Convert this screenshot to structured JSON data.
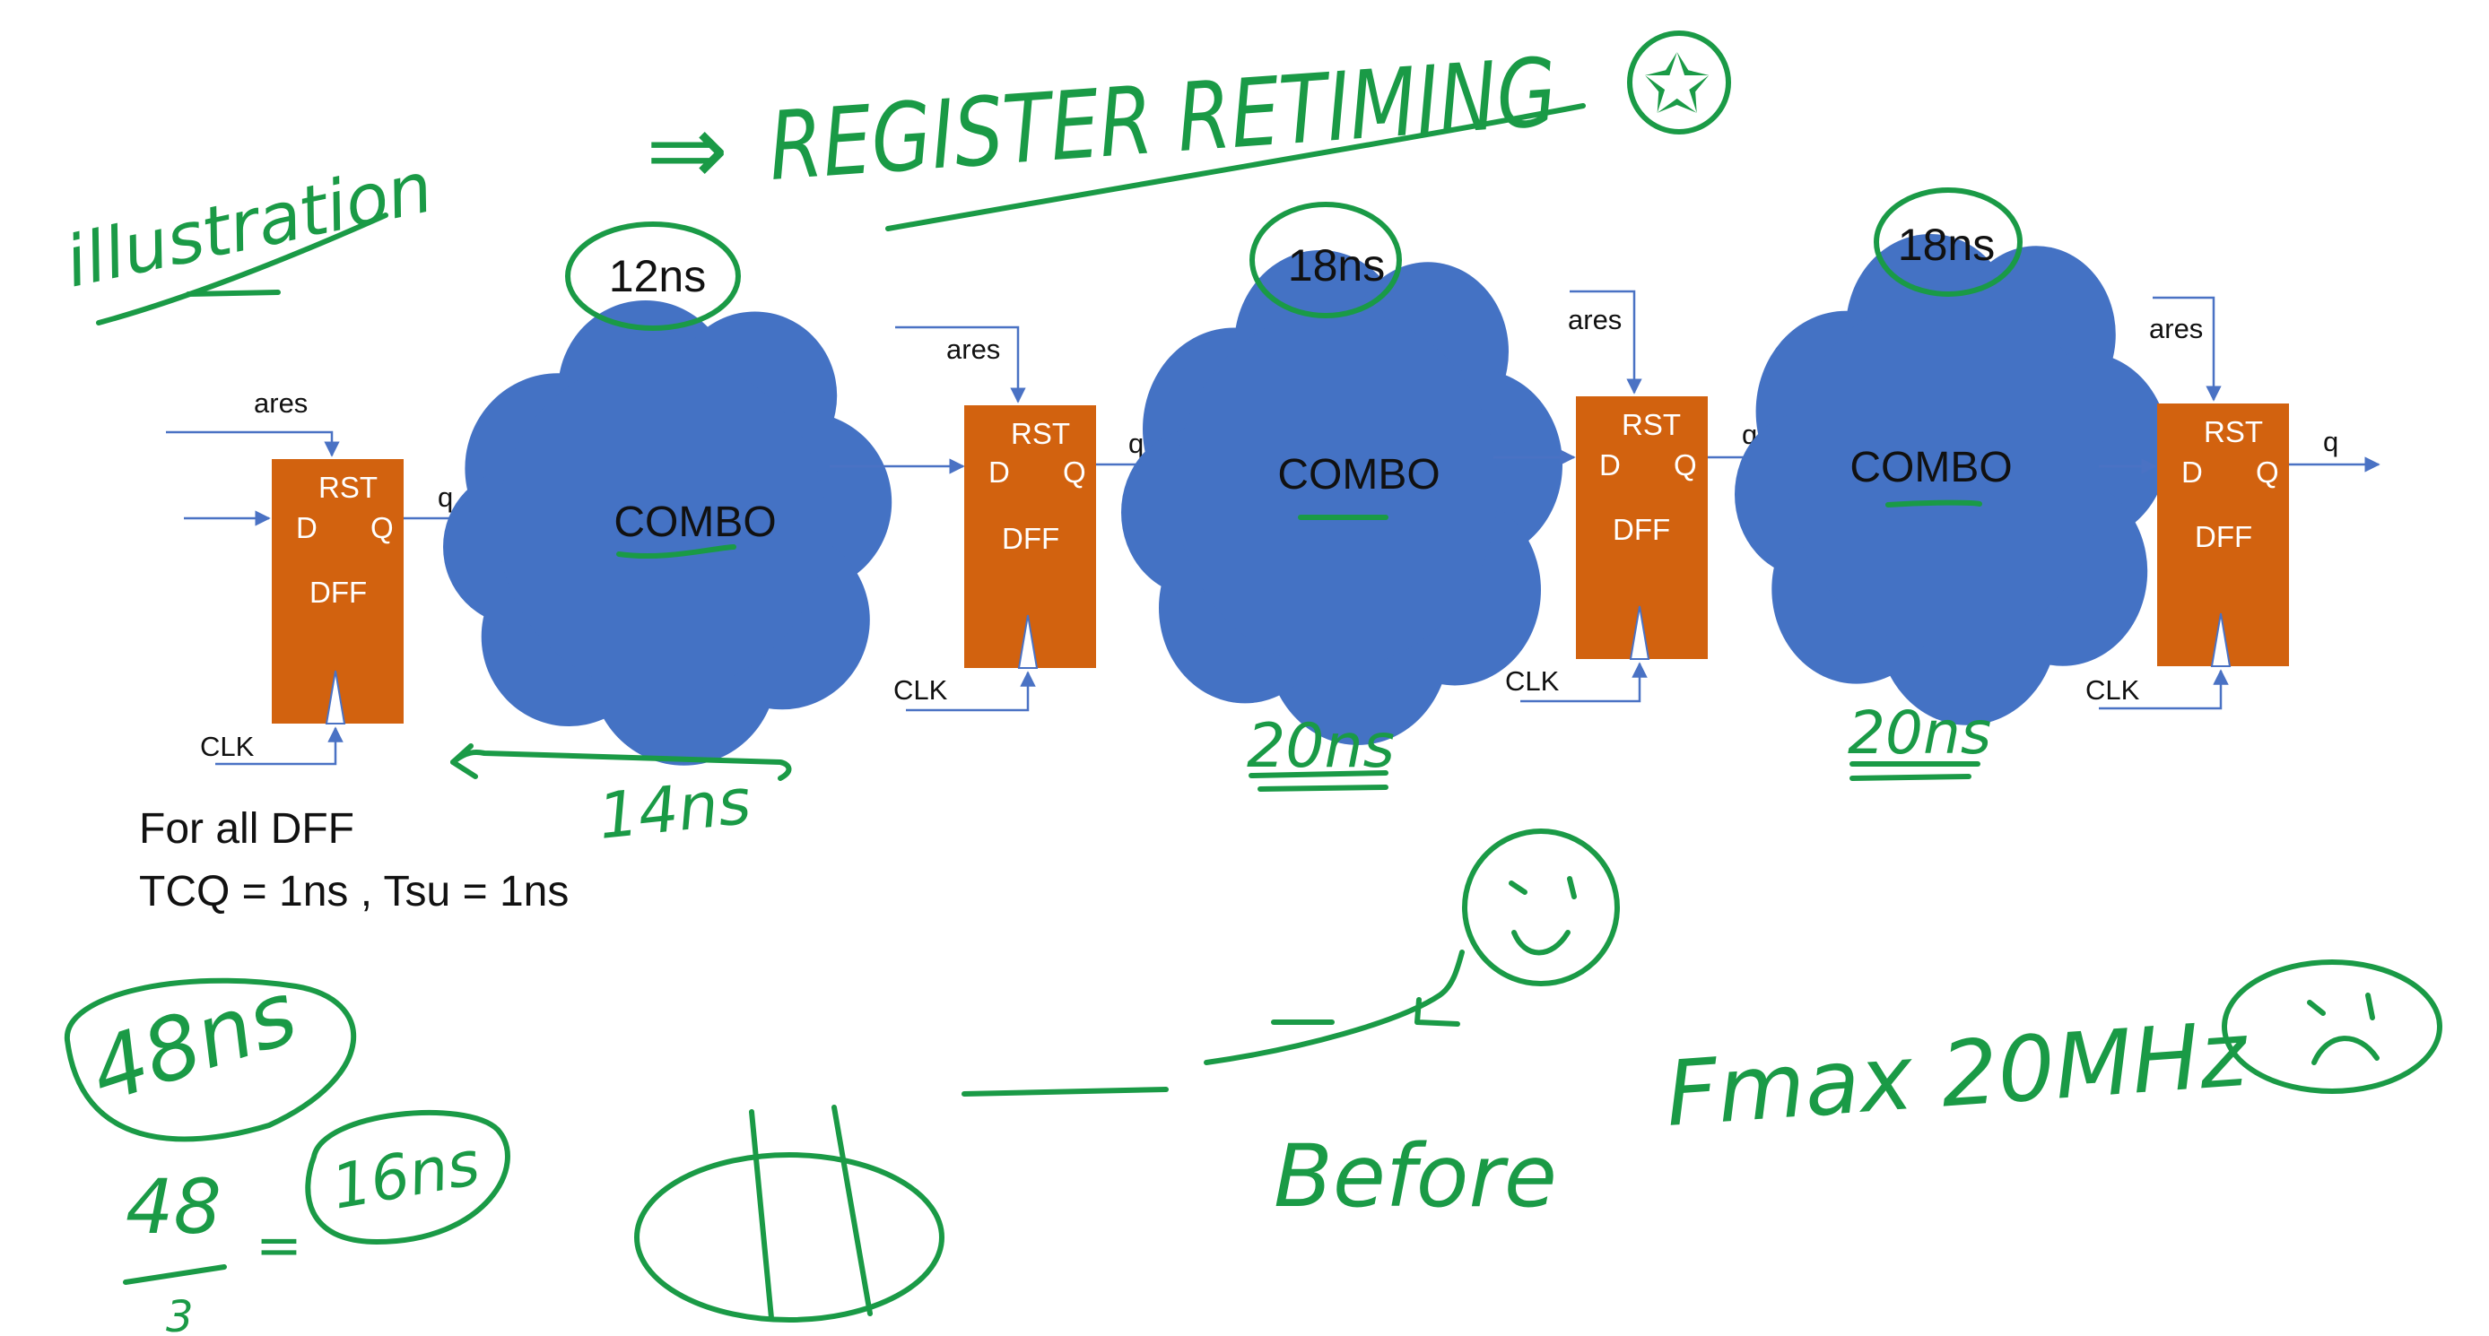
{
  "header": {
    "title": "REGISTER RETIMING",
    "arrow": "⇒",
    "star_mark": "✩",
    "side_note": "illustration"
  },
  "dff_labels": {
    "rst": "RST",
    "d": "D",
    "q_pin": "Q",
    "name": "DFF"
  },
  "signals": {
    "ares": "ares",
    "clk": "CLK",
    "q": "q"
  },
  "combo": {
    "label": "COMBO",
    "blocks": [
      {
        "circled_delay": "12ns",
        "handwritten_delay": "14ns"
      },
      {
        "circled_delay": "18ns",
        "handwritten_delay": "20ns"
      },
      {
        "circled_delay": "18ns",
        "handwritten_delay": "20ns"
      }
    ]
  },
  "notes": {
    "line1": "For all DFF",
    "line2": "TCQ = 1ns ,  Tsu = 1ns"
  },
  "annotations": {
    "total": "48ns",
    "div_num": "48",
    "div_den": "3",
    "equals": "=",
    "result": "16ns",
    "before": "Before",
    "fmax": "Fmax 20MHz"
  },
  "colors": {
    "dff": "#d2620f",
    "cloud": "#4472c4",
    "wire": "#4a72c4",
    "ink": "#1a9a46"
  }
}
